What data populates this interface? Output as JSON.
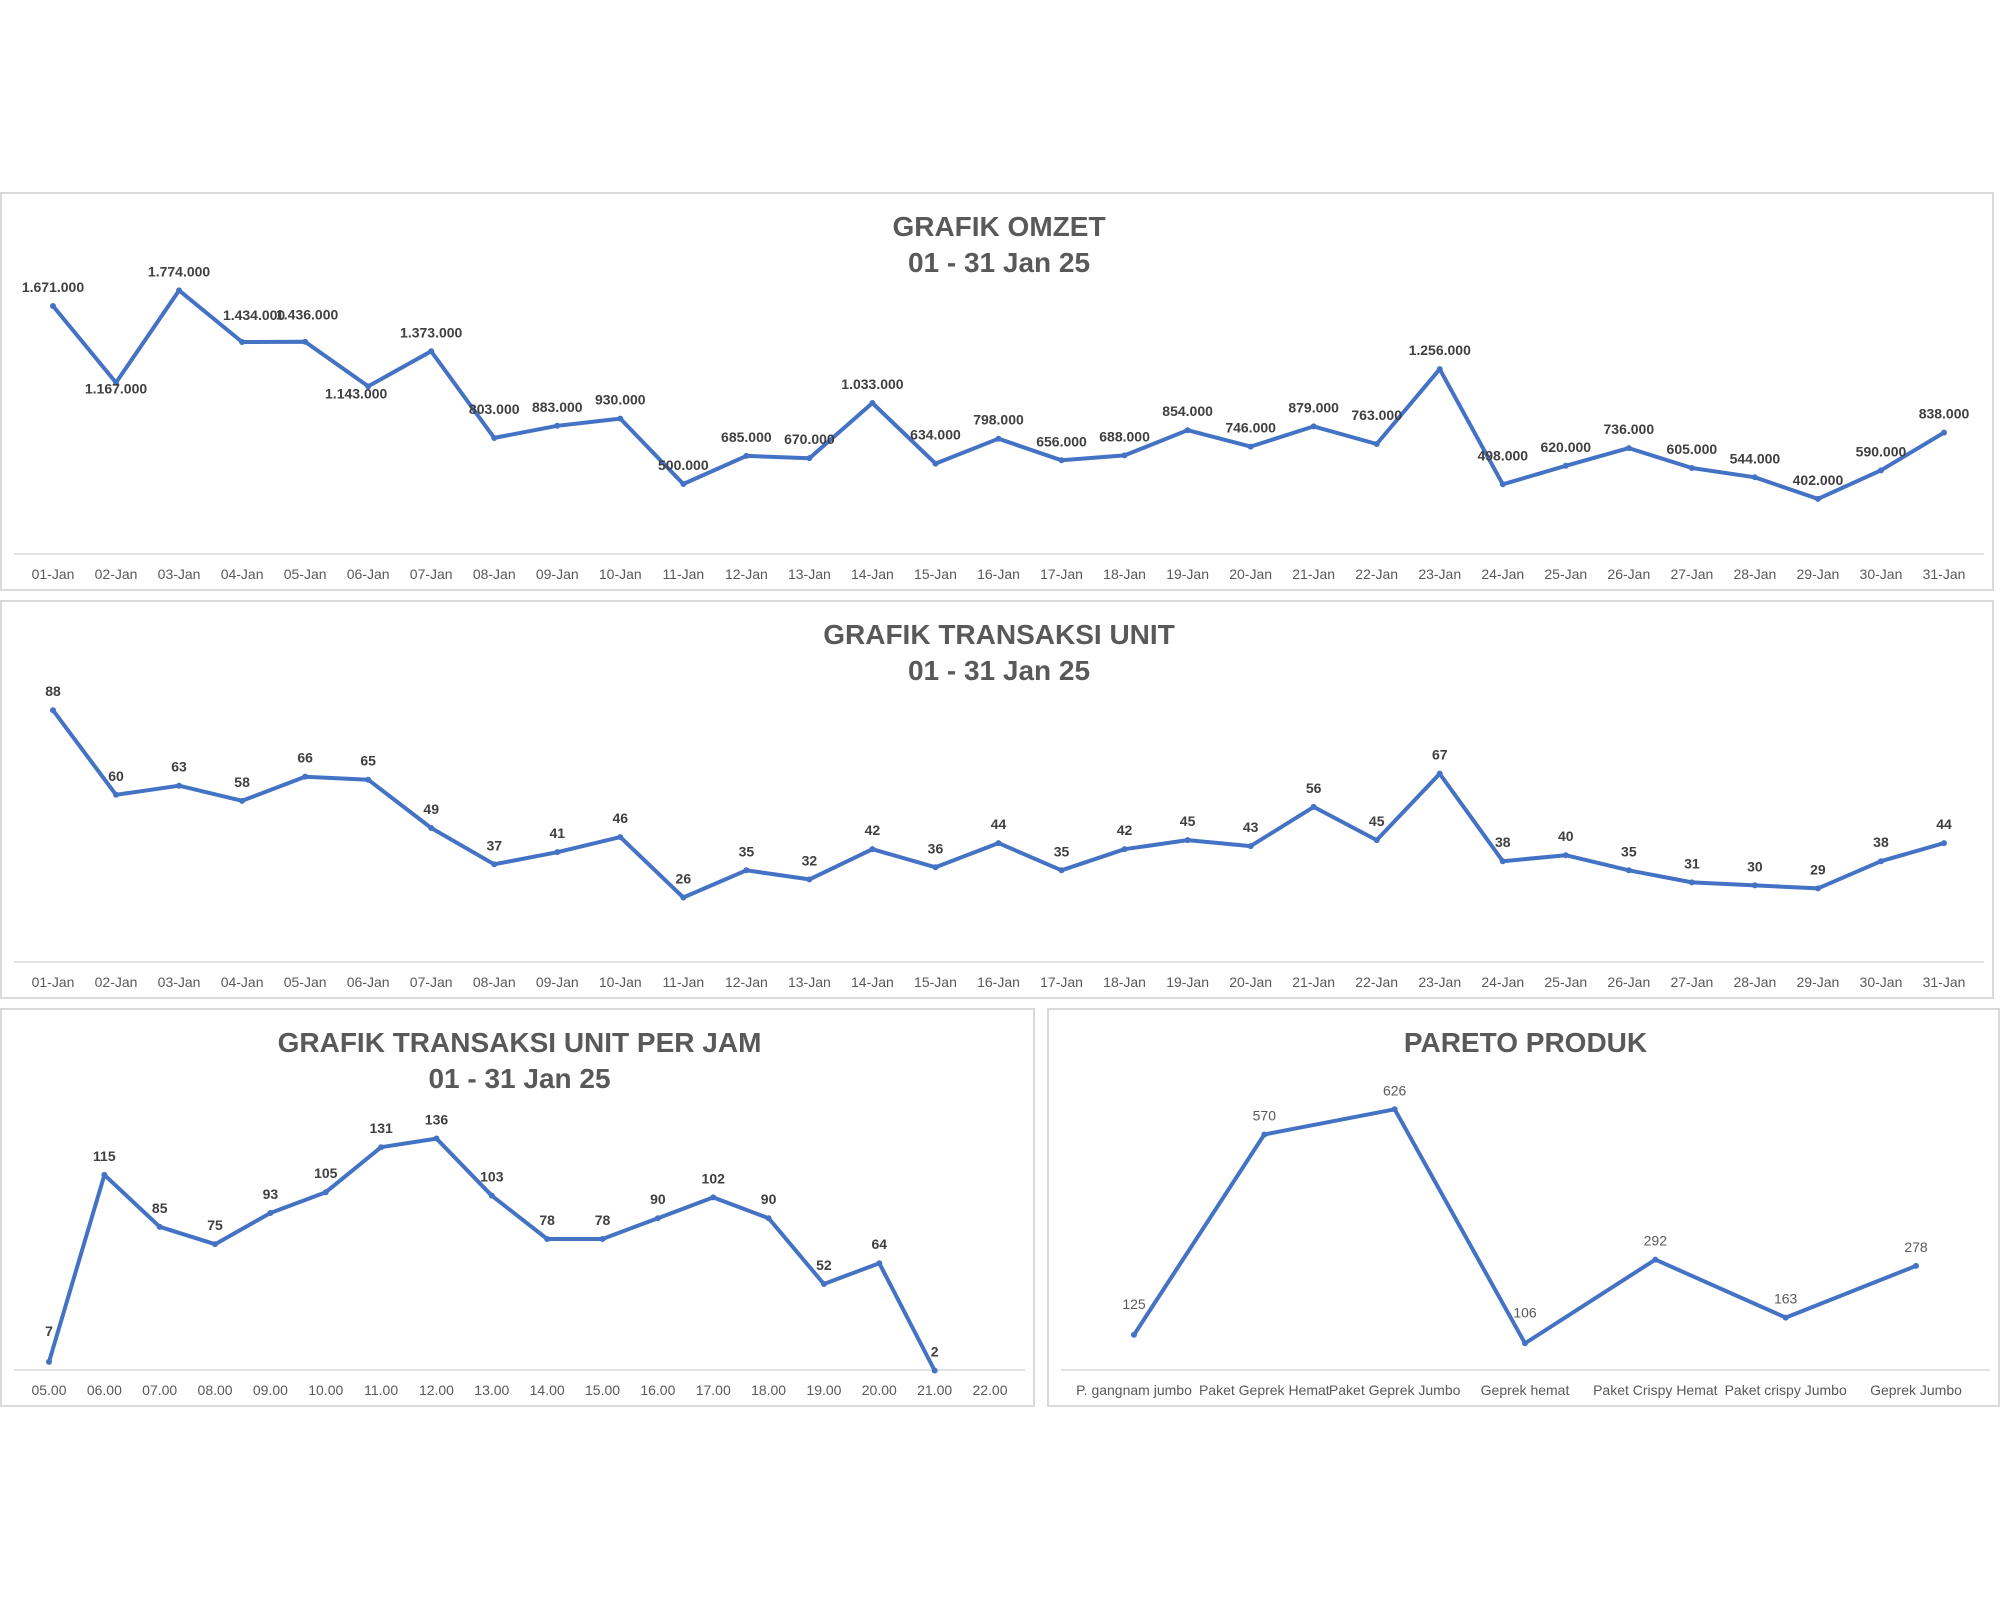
{
  "chart_data": [
    {
      "id": "omzet",
      "type": "line",
      "title": "GRAFIK OMZET",
      "subtitle": "01 - 31 Jan 25",
      "categories": [
        "01-Jan",
        "02-Jan",
        "03-Jan",
        "04-Jan",
        "05-Jan",
        "06-Jan",
        "07-Jan",
        "08-Jan",
        "09-Jan",
        "10-Jan",
        "11-Jan",
        "12-Jan",
        "13-Jan",
        "14-Jan",
        "15-Jan",
        "16-Jan",
        "17-Jan",
        "18-Jan",
        "19-Jan",
        "20-Jan",
        "21-Jan",
        "22-Jan",
        "23-Jan",
        "24-Jan",
        "25-Jan",
        "26-Jan",
        "27-Jan",
        "28-Jan",
        "29-Jan",
        "30-Jan",
        "31-Jan"
      ],
      "values": [
        1671000,
        1167000,
        1774000,
        1434000,
        1436000,
        1143000,
        1373000,
        803000,
        883000,
        930000,
        500000,
        685000,
        670000,
        1033000,
        634000,
        798000,
        656000,
        688000,
        854000,
        746000,
        879000,
        763000,
        1256000,
        498000,
        620000,
        736000,
        605000,
        544000,
        402000,
        590000,
        838000
      ],
      "labels": [
        "1.671.000",
        "1.167.000",
        "1.774.000",
        "1.434.000",
        "1.436.000",
        "1.143.000",
        "1.373.000",
        "803.000",
        "883.000",
        "930.000",
        "500.000",
        "685.000",
        "670.000",
        "1.033.000",
        "634.000",
        "798.000",
        "656.000",
        "688.000",
        "854.000",
        "746.000",
        "879.000",
        "763.000",
        "1.256.000",
        "498.000",
        "620.000",
        "736.000",
        "605.000",
        "544.000",
        "402.000",
        "590.000",
        "838.000"
      ],
      "ylim": [
        0,
        2000000
      ],
      "grid": false,
      "legend": "none",
      "color": "#4472c4"
    },
    {
      "id": "unit",
      "type": "line",
      "title": "GRAFIK TRANSAKSI UNIT",
      "subtitle": "01 - 31 Jan 25",
      "categories": [
        "01-Jan",
        "02-Jan",
        "03-Jan",
        "04-Jan",
        "05-Jan",
        "06-Jan",
        "07-Jan",
        "08-Jan",
        "09-Jan",
        "10-Jan",
        "11-Jan",
        "12-Jan",
        "13-Jan",
        "14-Jan",
        "15-Jan",
        "16-Jan",
        "17-Jan",
        "18-Jan",
        "19-Jan",
        "20-Jan",
        "21-Jan",
        "22-Jan",
        "23-Jan",
        "24-Jan",
        "25-Jan",
        "26-Jan",
        "27-Jan",
        "28-Jan",
        "29-Jan",
        "30-Jan",
        "31-Jan"
      ],
      "values": [
        88,
        60,
        63,
        58,
        66,
        65,
        49,
        37,
        41,
        46,
        26,
        35,
        32,
        42,
        36,
        44,
        35,
        42,
        45,
        43,
        56,
        45,
        67,
        38,
        40,
        35,
        31,
        30,
        29,
        38,
        44
      ],
      "labels": [
        "88",
        "60",
        "63",
        "58",
        "66",
        "65",
        "49",
        "37",
        "41",
        "46",
        "26",
        "35",
        "32",
        "42",
        "36",
        "44",
        "35",
        "42",
        "45",
        "43",
        "56",
        "45",
        "67",
        "38",
        "40",
        "35",
        "31",
        "30",
        "29",
        "38",
        "44"
      ],
      "ylim": [
        0,
        100
      ],
      "grid": false,
      "legend": "none",
      "color": "#4472c4"
    },
    {
      "id": "perjam",
      "type": "line",
      "title": "GRAFIK TRANSAKSI UNIT PER JAM",
      "subtitle": "01 - 31 Jan 25",
      "categories": [
        "05.00",
        "06.00",
        "07.00",
        "08.00",
        "09.00",
        "10.00",
        "11.00",
        "12.00",
        "13.00",
        "14.00",
        "15.00",
        "16.00",
        "17.00",
        "18.00",
        "19.00",
        "20.00",
        "21.00",
        "22.00"
      ],
      "values": [
        7,
        115,
        85,
        75,
        93,
        105,
        131,
        136,
        103,
        78,
        78,
        90,
        102,
        90,
        52,
        64,
        2,
        null
      ],
      "labels": [
        "7",
        "115",
        "85",
        "75",
        "93",
        "105",
        "131",
        "136",
        "103",
        "78",
        "78",
        "90",
        "102",
        "90",
        "52",
        "64",
        "2",
        ""
      ],
      "ylim": [
        0,
        160
      ],
      "grid": false,
      "legend": "none",
      "color": "#4472c4"
    },
    {
      "id": "pareto",
      "type": "line",
      "title": "PARETO PRODUK",
      "subtitle": "",
      "categories": [
        "P. gangnam jumbo",
        "Paket Geprek Hemat",
        "Paket Geprek Jumbo",
        "Geprek hemat",
        "Paket Crispy Hemat",
        "Paket crispy Jumbo",
        "Geprek Jumbo"
      ],
      "values": [
        125,
        570,
        626,
        106,
        292,
        163,
        278
      ],
      "labels": [
        "125",
        "570",
        "626",
        "106",
        "292",
        "163",
        "278"
      ],
      "ylim": [
        0,
        700
      ],
      "grid": false,
      "legend": "none",
      "color": "#4472c4"
    }
  ]
}
